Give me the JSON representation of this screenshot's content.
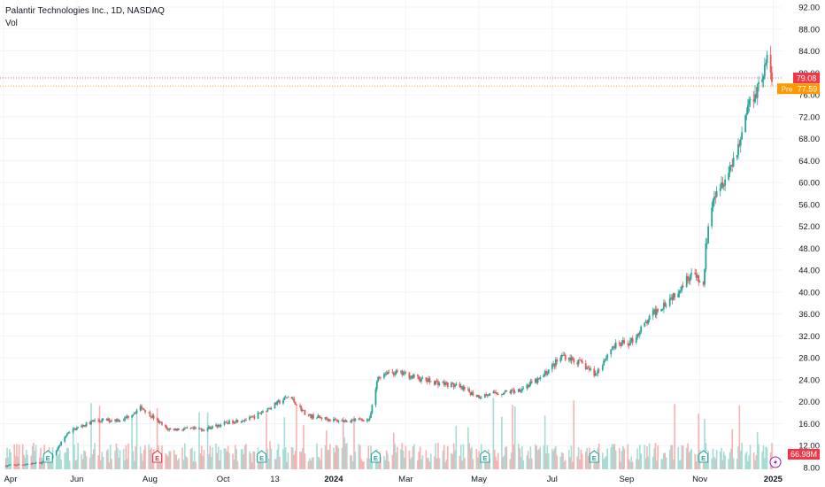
{
  "header": {
    "symbol_title": "Palantir Technologies Inc., 1D, NASDAQ",
    "volume_label": "Vol"
  },
  "colors": {
    "up": "#26a69a",
    "down": "#ef5350",
    "volume_up": "#a7dbd6",
    "volume_down": "#f7b2b0",
    "last_price": "#f23645",
    "pre_market": "#ff9800",
    "earnings": "#26a69a",
    "grid": "#f0f3fa",
    "axis_text": "#131722"
  },
  "price_labels": {
    "last": "79.08",
    "pre_tag": "Pre",
    "pre_price": "77.59",
    "volume_value": "66.98M"
  },
  "chart_data": {
    "type": "candlestick",
    "title": "",
    "price_axis_ticks": [
      "92.00",
      "88.00",
      "84.00",
      "80.00",
      "76.00",
      "72.00",
      "68.00",
      "64.00",
      "60.00",
      "56.00",
      "52.00",
      "48.00",
      "44.00",
      "40.00",
      "36.00",
      "32.00",
      "28.00",
      "24.00",
      "20.00",
      "16.00",
      "12.00",
      "8.00"
    ],
    "y_range": [
      8,
      92
    ],
    "x_ticks": [
      "Apr",
      "Jun",
      "Aug",
      "Oct",
      "13",
      "2024",
      "Mar",
      "May",
      "Jul",
      "Sep",
      "Nov",
      "2025"
    ],
    "last_price": 79.08,
    "pre_market_price": 77.59,
    "price_path": [
      [
        "2023-04-01",
        8.3
      ],
      [
        "2023-05-01",
        8.8
      ],
      [
        "2023-05-10",
        9.5
      ],
      [
        "2023-05-25",
        14.5
      ],
      [
        "2023-06-15",
        16.5
      ],
      [
        "2023-07-10",
        16.8
      ],
      [
        "2023-07-25",
        19.0
      ],
      [
        "2023-08-15",
        15.0
      ],
      [
        "2023-09-15",
        15.0
      ],
      [
        "2023-10-10",
        16.5
      ],
      [
        "2023-10-25",
        17.0
      ],
      [
        "2023-11-05",
        18.5
      ],
      [
        "2023-11-25",
        21.0
      ],
      [
        "2023-12-10",
        17.5
      ],
      [
        "2024-01-05",
        16.5
      ],
      [
        "2024-01-31",
        16.8
      ],
      [
        "2024-02-07",
        24.5
      ],
      [
        "2024-02-15",
        25.5
      ],
      [
        "2024-03-01",
        25.0
      ],
      [
        "2024-03-15",
        24.0
      ],
      [
        "2024-04-10",
        23.0
      ],
      [
        "2024-05-01",
        21.0
      ],
      [
        "2024-05-15",
        21.5
      ],
      [
        "2024-06-01",
        22.0
      ],
      [
        "2024-06-20",
        24.0
      ],
      [
        "2024-07-10",
        28.5
      ],
      [
        "2024-07-25",
        27.0
      ],
      [
        "2024-08-06",
        25.0
      ],
      [
        "2024-08-20",
        30.0
      ],
      [
        "2024-09-05",
        31.0
      ],
      [
        "2024-09-25",
        36.5
      ],
      [
        "2024-10-10",
        39.5
      ],
      [
        "2024-10-25",
        43.5
      ],
      [
        "2024-11-04",
        41.0
      ],
      [
        "2024-11-06",
        48.0
      ],
      [
        "2024-11-12",
        58.0
      ],
      [
        "2024-11-25",
        62.0
      ],
      [
        "2024-12-05",
        68.0
      ],
      [
        "2024-12-10",
        73.5
      ],
      [
        "2024-12-20",
        78.0
      ],
      [
        "2024-12-27",
        82.0
      ],
      [
        "2024-12-31",
        78.5
      ]
    ],
    "earnings_markers": [
      {
        "date": "2023-05-08",
        "label": "E",
        "result": "beat"
      },
      {
        "date": "2023-08-07",
        "label": "E",
        "result": "miss"
      },
      {
        "date": "2023-11-02",
        "label": "E",
        "result": "beat"
      },
      {
        "date": "2024-02-05",
        "label": "E",
        "result": "beat"
      },
      {
        "date": "2024-05-06",
        "label": "E",
        "result": "beat"
      },
      {
        "date": "2024-08-05",
        "label": "E",
        "result": "beat"
      },
      {
        "date": "2024-11-04",
        "label": "E",
        "result": "beat"
      }
    ],
    "dividend_marker": {
      "date": "2024-12-31",
      "icon": "lightning-icon"
    }
  }
}
